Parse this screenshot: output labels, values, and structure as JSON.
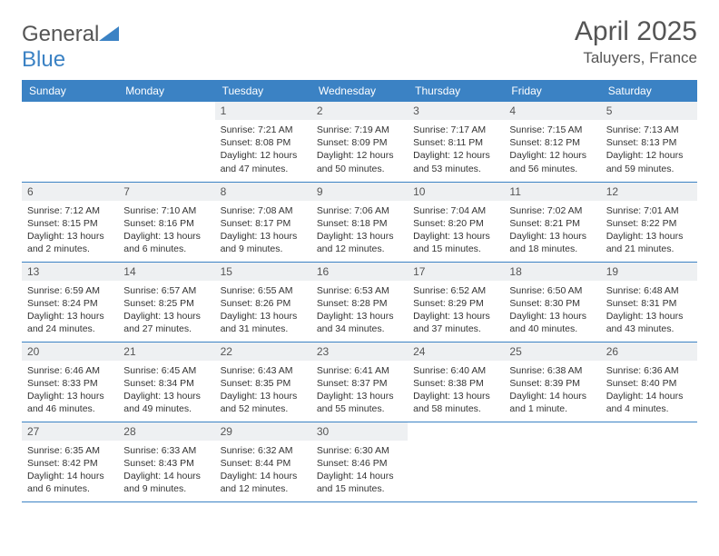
{
  "logo": {
    "part1": "General",
    "part2": "Blue"
  },
  "title": "April 2025",
  "location": "Taluyers, France",
  "colors": {
    "header_bg": "#3b82c4",
    "header_fg": "#ffffff",
    "daynum_bg": "#eef0f2",
    "text": "#555555",
    "rule": "#3b82c4"
  },
  "weekdays": [
    "Sunday",
    "Monday",
    "Tuesday",
    "Wednesday",
    "Thursday",
    "Friday",
    "Saturday"
  ],
  "grid": [
    [
      null,
      null,
      {
        "n": "1",
        "sr": "Sunrise: 7:21 AM",
        "ss": "Sunset: 8:08 PM",
        "dl": "Daylight: 12 hours and 47 minutes."
      },
      {
        "n": "2",
        "sr": "Sunrise: 7:19 AM",
        "ss": "Sunset: 8:09 PM",
        "dl": "Daylight: 12 hours and 50 minutes."
      },
      {
        "n": "3",
        "sr": "Sunrise: 7:17 AM",
        "ss": "Sunset: 8:11 PM",
        "dl": "Daylight: 12 hours and 53 minutes."
      },
      {
        "n": "4",
        "sr": "Sunrise: 7:15 AM",
        "ss": "Sunset: 8:12 PM",
        "dl": "Daylight: 12 hours and 56 minutes."
      },
      {
        "n": "5",
        "sr": "Sunrise: 7:13 AM",
        "ss": "Sunset: 8:13 PM",
        "dl": "Daylight: 12 hours and 59 minutes."
      }
    ],
    [
      {
        "n": "6",
        "sr": "Sunrise: 7:12 AM",
        "ss": "Sunset: 8:15 PM",
        "dl": "Daylight: 13 hours and 2 minutes."
      },
      {
        "n": "7",
        "sr": "Sunrise: 7:10 AM",
        "ss": "Sunset: 8:16 PM",
        "dl": "Daylight: 13 hours and 6 minutes."
      },
      {
        "n": "8",
        "sr": "Sunrise: 7:08 AM",
        "ss": "Sunset: 8:17 PM",
        "dl": "Daylight: 13 hours and 9 minutes."
      },
      {
        "n": "9",
        "sr": "Sunrise: 7:06 AM",
        "ss": "Sunset: 8:18 PM",
        "dl": "Daylight: 13 hours and 12 minutes."
      },
      {
        "n": "10",
        "sr": "Sunrise: 7:04 AM",
        "ss": "Sunset: 8:20 PM",
        "dl": "Daylight: 13 hours and 15 minutes."
      },
      {
        "n": "11",
        "sr": "Sunrise: 7:02 AM",
        "ss": "Sunset: 8:21 PM",
        "dl": "Daylight: 13 hours and 18 minutes."
      },
      {
        "n": "12",
        "sr": "Sunrise: 7:01 AM",
        "ss": "Sunset: 8:22 PM",
        "dl": "Daylight: 13 hours and 21 minutes."
      }
    ],
    [
      {
        "n": "13",
        "sr": "Sunrise: 6:59 AM",
        "ss": "Sunset: 8:24 PM",
        "dl": "Daylight: 13 hours and 24 minutes."
      },
      {
        "n": "14",
        "sr": "Sunrise: 6:57 AM",
        "ss": "Sunset: 8:25 PM",
        "dl": "Daylight: 13 hours and 27 minutes."
      },
      {
        "n": "15",
        "sr": "Sunrise: 6:55 AM",
        "ss": "Sunset: 8:26 PM",
        "dl": "Daylight: 13 hours and 31 minutes."
      },
      {
        "n": "16",
        "sr": "Sunrise: 6:53 AM",
        "ss": "Sunset: 8:28 PM",
        "dl": "Daylight: 13 hours and 34 minutes."
      },
      {
        "n": "17",
        "sr": "Sunrise: 6:52 AM",
        "ss": "Sunset: 8:29 PM",
        "dl": "Daylight: 13 hours and 37 minutes."
      },
      {
        "n": "18",
        "sr": "Sunrise: 6:50 AM",
        "ss": "Sunset: 8:30 PM",
        "dl": "Daylight: 13 hours and 40 minutes."
      },
      {
        "n": "19",
        "sr": "Sunrise: 6:48 AM",
        "ss": "Sunset: 8:31 PM",
        "dl": "Daylight: 13 hours and 43 minutes."
      }
    ],
    [
      {
        "n": "20",
        "sr": "Sunrise: 6:46 AM",
        "ss": "Sunset: 8:33 PM",
        "dl": "Daylight: 13 hours and 46 minutes."
      },
      {
        "n": "21",
        "sr": "Sunrise: 6:45 AM",
        "ss": "Sunset: 8:34 PM",
        "dl": "Daylight: 13 hours and 49 minutes."
      },
      {
        "n": "22",
        "sr": "Sunrise: 6:43 AM",
        "ss": "Sunset: 8:35 PM",
        "dl": "Daylight: 13 hours and 52 minutes."
      },
      {
        "n": "23",
        "sr": "Sunrise: 6:41 AM",
        "ss": "Sunset: 8:37 PM",
        "dl": "Daylight: 13 hours and 55 minutes."
      },
      {
        "n": "24",
        "sr": "Sunrise: 6:40 AM",
        "ss": "Sunset: 8:38 PM",
        "dl": "Daylight: 13 hours and 58 minutes."
      },
      {
        "n": "25",
        "sr": "Sunrise: 6:38 AM",
        "ss": "Sunset: 8:39 PM",
        "dl": "Daylight: 14 hours and 1 minute."
      },
      {
        "n": "26",
        "sr": "Sunrise: 6:36 AM",
        "ss": "Sunset: 8:40 PM",
        "dl": "Daylight: 14 hours and 4 minutes."
      }
    ],
    [
      {
        "n": "27",
        "sr": "Sunrise: 6:35 AM",
        "ss": "Sunset: 8:42 PM",
        "dl": "Daylight: 14 hours and 6 minutes."
      },
      {
        "n": "28",
        "sr": "Sunrise: 6:33 AM",
        "ss": "Sunset: 8:43 PM",
        "dl": "Daylight: 14 hours and 9 minutes."
      },
      {
        "n": "29",
        "sr": "Sunrise: 6:32 AM",
        "ss": "Sunset: 8:44 PM",
        "dl": "Daylight: 14 hours and 12 minutes."
      },
      {
        "n": "30",
        "sr": "Sunrise: 6:30 AM",
        "ss": "Sunset: 8:46 PM",
        "dl": "Daylight: 14 hours and 15 minutes."
      },
      null,
      null,
      null
    ]
  ]
}
